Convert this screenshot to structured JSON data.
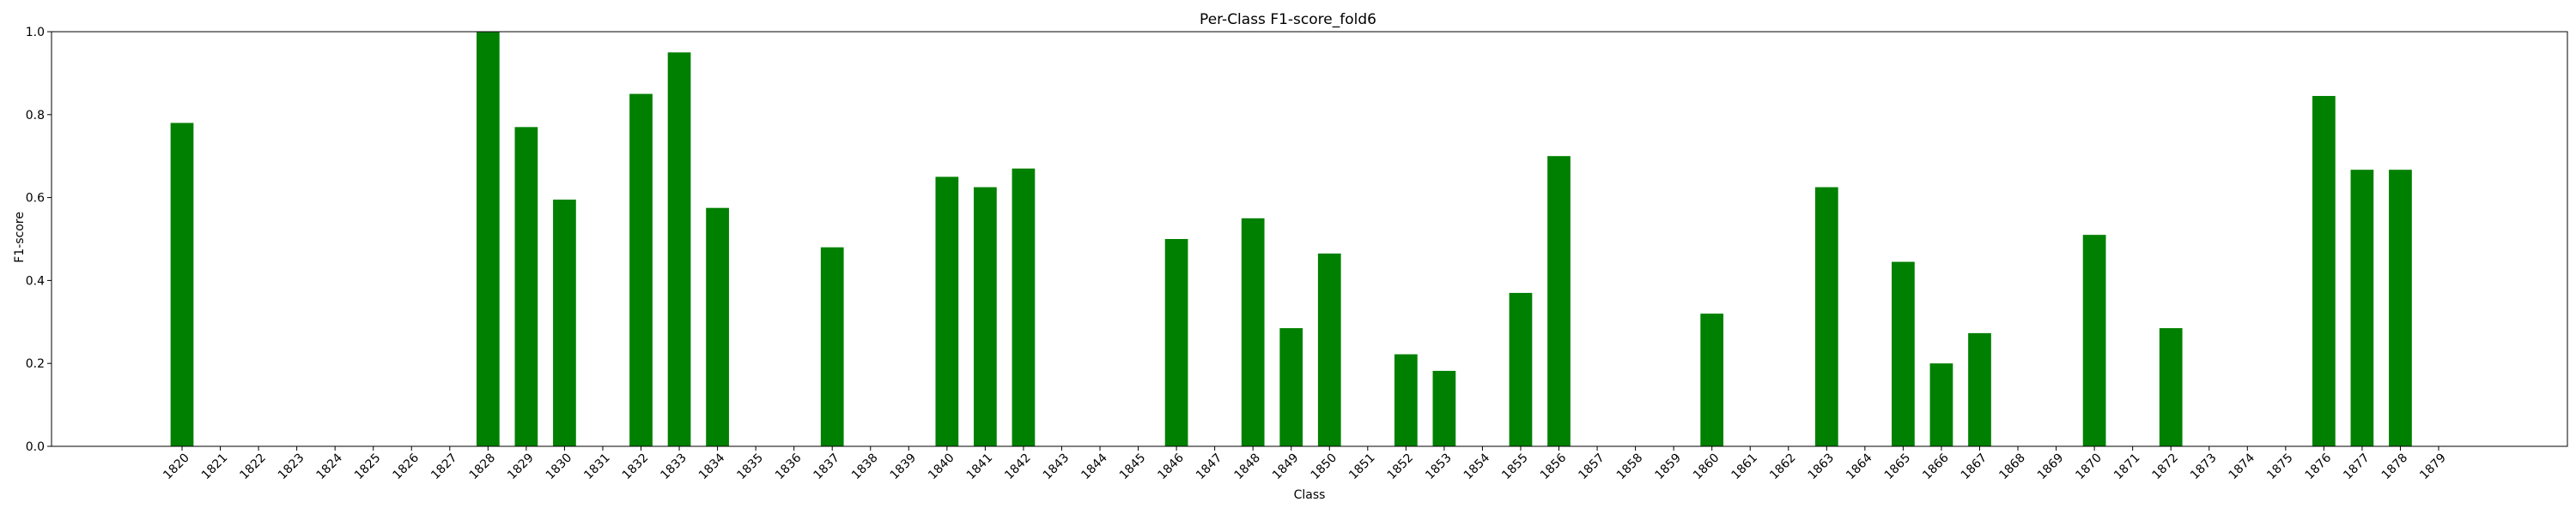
{
  "chart_data": {
    "type": "bar",
    "title": "Per-Class F1-score_fold6",
    "xlabel": "Class",
    "ylabel": "F1-score",
    "ylim": [
      0,
      1.0
    ],
    "yticks": [
      "0.0",
      "0.2",
      "0.4",
      "0.6",
      "0.8",
      "1.0"
    ],
    "bar_color": "#008000",
    "grid": false,
    "categories": [
      "1820",
      "1821",
      "1822",
      "1823",
      "1824",
      "1825",
      "1826",
      "1827",
      "1828",
      "1829",
      "1830",
      "1831",
      "1832",
      "1833",
      "1834",
      "1835",
      "1836",
      "1837",
      "1838",
      "1839",
      "1840",
      "1841",
      "1842",
      "1843",
      "1844",
      "1845",
      "1846",
      "1847",
      "1848",
      "1849",
      "1850",
      "1851",
      "1852",
      "1853",
      "1854",
      "1855",
      "1856",
      "1857",
      "1858",
      "1859",
      "1860",
      "1861",
      "1862",
      "1863",
      "1864",
      "1865",
      "1866",
      "1867",
      "1868",
      "1869",
      "1870",
      "1871",
      "1872",
      "1873",
      "1874",
      "1875",
      "1876",
      "1877",
      "1878",
      "1879"
    ],
    "values": [
      0.78,
      0,
      0,
      0,
      0,
      0,
      0,
      0,
      1.0,
      0.77,
      0.595,
      0,
      0.85,
      0.95,
      0.575,
      0,
      0,
      0.48,
      0,
      0,
      0.65,
      0.625,
      0.67,
      0,
      0,
      0,
      0.5,
      0,
      0.55,
      0.285,
      0.465,
      0,
      0.222,
      0.182,
      0,
      0.37,
      0.7,
      0,
      0,
      0,
      0.32,
      0,
      0,
      0.625,
      0,
      0.445,
      0.2,
      0.273,
      0,
      0,
      0.51,
      0,
      0.285,
      0,
      0,
      0,
      0.845,
      0.667,
      0.667,
      0
    ]
  }
}
